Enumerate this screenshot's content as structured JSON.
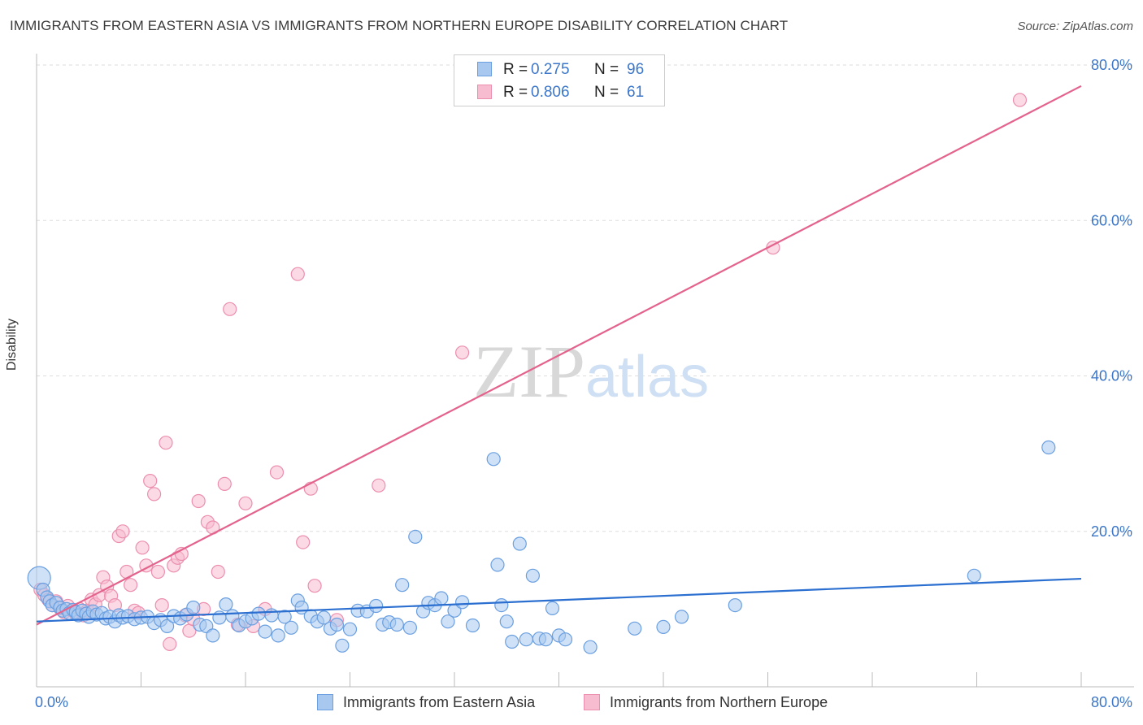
{
  "header": {
    "title": "IMMIGRANTS FROM EASTERN ASIA VS IMMIGRANTS FROM NORTHERN EUROPE DISABILITY CORRELATION CHART",
    "source": "Source: ZipAtlas.com"
  },
  "watermark": {
    "zip": "ZIP",
    "atlas": "atlas"
  },
  "legend_top": {
    "rows": [
      {
        "r_label": "R =",
        "r_value": "0.275",
        "n_label": "N =",
        "n_value": "96"
      },
      {
        "r_label": "R =",
        "r_value": "0.806",
        "n_label": "N =",
        "n_value": "61"
      }
    ]
  },
  "legend_bottom": {
    "series1": "Immigrants from Eastern Asia",
    "series2": "Immigrants from Northern Europe"
  },
  "colors": {
    "series1_fill": "#a8c8f0",
    "series1_stroke": "#6a9fe0",
    "series1_line": "#2b6fd0",
    "series2_fill": "#f7bcd0",
    "series2_stroke": "#ec8fae",
    "series2_line": "#e4638d",
    "tick_label": "#3b76c9",
    "grid": "#dddddd"
  },
  "chart_data": {
    "type": "scatter",
    "title": "IMMIGRANTS FROM EASTERN ASIA VS IMMIGRANTS FROM NORTHERN EUROPE DISABILITY CORRELATION CHART",
    "xlabel": "",
    "ylabel": "Disability",
    "xlim": [
      0,
      80
    ],
    "ylim": [
      0,
      80
    ],
    "x_tick_labels": [
      "0.0%",
      "80.0%"
    ],
    "y_tick_labels": [
      "20.0%",
      "40.0%",
      "60.0%",
      "80.0%"
    ],
    "y_ticks": [
      20,
      40,
      60,
      80
    ],
    "grid": true,
    "legend_position": "top-center",
    "series": [
      {
        "name": "Immigrants from Eastern Asia",
        "R": 0.275,
        "N": 96,
        "trend": {
          "x": [
            0,
            80
          ],
          "y": [
            8.4,
            13.9
          ]
        },
        "points": [
          [
            0.2,
            14.0
          ],
          [
            0.5,
            12.5
          ],
          [
            0.8,
            11.5
          ],
          [
            1.0,
            11.0
          ],
          [
            1.2,
            10.5
          ],
          [
            1.5,
            10.8
          ],
          [
            1.8,
            10.2
          ],
          [
            2.0,
            9.8
          ],
          [
            2.3,
            10.0
          ],
          [
            2.5,
            9.5
          ],
          [
            2.8,
            9.9
          ],
          [
            3.0,
            9.6
          ],
          [
            3.2,
            9.2
          ],
          [
            3.5,
            9.8
          ],
          [
            3.8,
            9.4
          ],
          [
            4.0,
            9.0
          ],
          [
            4.3,
            9.7
          ],
          [
            4.6,
            9.3
          ],
          [
            5.0,
            9.5
          ],
          [
            5.3,
            8.8
          ],
          [
            5.6,
            9.0
          ],
          [
            6.0,
            8.4
          ],
          [
            6.3,
            9.2
          ],
          [
            6.6,
            8.9
          ],
          [
            7.0,
            9.1
          ],
          [
            7.5,
            8.7
          ],
          [
            8.0,
            8.9
          ],
          [
            8.5,
            9.0
          ],
          [
            9.0,
            8.2
          ],
          [
            9.5,
            8.6
          ],
          [
            10.0,
            7.8
          ],
          [
            10.5,
            9.1
          ],
          [
            11.0,
            8.8
          ],
          [
            11.5,
            9.3
          ],
          [
            12.0,
            10.2
          ],
          [
            12.5,
            8.0
          ],
          [
            13.0,
            7.8
          ],
          [
            13.5,
            6.6
          ],
          [
            14.0,
            8.9
          ],
          [
            14.5,
            10.6
          ],
          [
            15.0,
            9.1
          ],
          [
            15.5,
            7.9
          ],
          [
            16.0,
            8.4
          ],
          [
            16.5,
            8.8
          ],
          [
            17.0,
            9.4
          ],
          [
            17.5,
            7.1
          ],
          [
            18.0,
            9.2
          ],
          [
            18.5,
            6.6
          ],
          [
            19.0,
            9.0
          ],
          [
            19.5,
            7.6
          ],
          [
            20.0,
            11.1
          ],
          [
            20.3,
            10.2
          ],
          [
            21.0,
            9.1
          ],
          [
            21.5,
            8.4
          ],
          [
            22.0,
            8.9
          ],
          [
            22.5,
            7.5
          ],
          [
            23.0,
            8.0
          ],
          [
            23.4,
            5.3
          ],
          [
            24.0,
            7.4
          ],
          [
            24.6,
            9.8
          ],
          [
            25.3,
            9.7
          ],
          [
            26.0,
            10.4
          ],
          [
            26.5,
            8.0
          ],
          [
            27.0,
            8.3
          ],
          [
            27.6,
            8.0
          ],
          [
            28.0,
            13.1
          ],
          [
            28.6,
            7.6
          ],
          [
            29.0,
            19.3
          ],
          [
            29.6,
            9.7
          ],
          [
            30.0,
            10.8
          ],
          [
            30.5,
            10.5
          ],
          [
            31.0,
            11.4
          ],
          [
            31.5,
            8.4
          ],
          [
            32.0,
            9.8
          ],
          [
            32.6,
            10.9
          ],
          [
            33.4,
            7.9
          ],
          [
            35.0,
            29.3
          ],
          [
            35.3,
            15.7
          ],
          [
            35.6,
            10.5
          ],
          [
            36.0,
            8.4
          ],
          [
            36.4,
            5.8
          ],
          [
            37.0,
            18.4
          ],
          [
            38.0,
            14.3
          ],
          [
            37.5,
            6.1
          ],
          [
            38.5,
            6.2
          ],
          [
            39.0,
            6.1
          ],
          [
            39.5,
            10.1
          ],
          [
            40.0,
            6.6
          ],
          [
            40.5,
            6.1
          ],
          [
            42.4,
            5.1
          ],
          [
            45.8,
            7.5
          ],
          [
            48.0,
            7.7
          ],
          [
            49.4,
            9.0
          ],
          [
            53.5,
            10.5
          ],
          [
            71.8,
            14.3
          ],
          [
            77.5,
            30.8
          ]
        ]
      },
      {
        "name": "Immigrants from Northern Europe",
        "R": 0.806,
        "N": 61,
        "trend": {
          "x": [
            0,
            80
          ],
          "y": [
            8.0,
            77.3
          ]
        },
        "points": [
          [
            0.3,
            12.5
          ],
          [
            0.6,
            11.8
          ],
          [
            0.9,
            11.2
          ],
          [
            1.2,
            10.5
          ],
          [
            1.5,
            11.0
          ],
          [
            1.8,
            10.1
          ],
          [
            2.1,
            9.6
          ],
          [
            2.4,
            10.4
          ],
          [
            2.7,
            9.8
          ],
          [
            3.0,
            9.4
          ],
          [
            3.3,
            10.0
          ],
          [
            3.6,
            9.2
          ],
          [
            3.9,
            9.8
          ],
          [
            4.2,
            11.2
          ],
          [
            4.5,
            10.6
          ],
          [
            4.8,
            11.8
          ],
          [
            5.1,
            14.1
          ],
          [
            5.4,
            12.9
          ],
          [
            5.7,
            11.7
          ],
          [
            6.0,
            10.5
          ],
          [
            6.3,
            19.4
          ],
          [
            6.6,
            20.0
          ],
          [
            6.9,
            14.8
          ],
          [
            7.2,
            13.1
          ],
          [
            7.5,
            9.8
          ],
          [
            7.8,
            9.5
          ],
          [
            8.1,
            17.9
          ],
          [
            8.4,
            15.6
          ],
          [
            8.7,
            26.5
          ],
          [
            9.0,
            24.8
          ],
          [
            9.3,
            14.8
          ],
          [
            9.6,
            10.5
          ],
          [
            9.9,
            31.4
          ],
          [
            10.2,
            5.5
          ],
          [
            10.5,
            15.6
          ],
          [
            10.8,
            16.6
          ],
          [
            11.1,
            17.1
          ],
          [
            11.4,
            9.2
          ],
          [
            11.7,
            7.2
          ],
          [
            12.0,
            8.7
          ],
          [
            12.4,
            23.9
          ],
          [
            12.8,
            10.0
          ],
          [
            13.1,
            21.2
          ],
          [
            13.5,
            20.5
          ],
          [
            13.9,
            14.8
          ],
          [
            14.4,
            26.1
          ],
          [
            14.8,
            48.6
          ],
          [
            15.4,
            8.0
          ],
          [
            16.0,
            23.6
          ],
          [
            16.6,
            7.8
          ],
          [
            17.5,
            10.0
          ],
          [
            18.4,
            27.6
          ],
          [
            20.0,
            53.1
          ],
          [
            20.4,
            18.6
          ],
          [
            21.0,
            25.5
          ],
          [
            21.3,
            13.0
          ],
          [
            23.0,
            8.6
          ],
          [
            32.6,
            43.0
          ],
          [
            26.2,
            25.9
          ],
          [
            56.4,
            56.5
          ],
          [
            75.3,
            75.5
          ]
        ]
      }
    ]
  }
}
